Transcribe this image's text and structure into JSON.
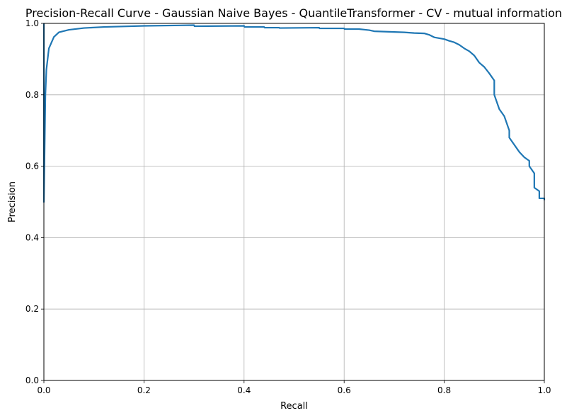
{
  "chart_data": {
    "type": "line",
    "title": "Precision-Recall Curve - Gaussian Naive Bayes - QuantileTransformer - CV - mutual information",
    "xlabel": "Recall",
    "ylabel": "Precision",
    "xlim": [
      0,
      1
    ],
    "ylim": [
      0,
      1
    ],
    "xticks": [
      "0.0",
      "0.2",
      "0.4",
      "0.6",
      "0.8",
      "1.0"
    ],
    "yticks": [
      "0.0",
      "0.2",
      "0.4",
      "0.6",
      "0.8",
      "1.0"
    ],
    "grid": true,
    "line_color": "#1f77b4",
    "series": [
      {
        "x": [
          0,
          0,
          0.001,
          0.003,
          0.005,
          0.01,
          0.02,
          0.03,
          0.05,
          0.08,
          0.12,
          0.2,
          0.3,
          0.301,
          0.4,
          0.401,
          0.44,
          0.441,
          0.47,
          0.471,
          0.55,
          0.551,
          0.6,
          0.601,
          0.63,
          0.65,
          0.66,
          0.7,
          0.72,
          0.74,
          0.76,
          0.77,
          0.78,
          0.8,
          0.81,
          0.82,
          0.83,
          0.84,
          0.85,
          0.86,
          0.87,
          0.88,
          0.89,
          0.9,
          0.9,
          0.91,
          0.92,
          0.93,
          0.93,
          0.94,
          0.95,
          0.96,
          0.97,
          0.97,
          0.98,
          0.98,
          0.99,
          0.99,
          1.0,
          1.0
        ],
        "y": [
          1.0,
          0.5,
          0.6,
          0.8,
          0.87,
          0.93,
          0.962,
          0.975,
          0.982,
          0.987,
          0.99,
          0.993,
          0.995,
          0.992,
          0.993,
          0.99,
          0.99,
          0.988,
          0.988,
          0.987,
          0.988,
          0.986,
          0.986,
          0.984,
          0.984,
          0.981,
          0.978,
          0.976,
          0.975,
          0.973,
          0.972,
          0.968,
          0.961,
          0.956,
          0.951,
          0.947,
          0.94,
          0.93,
          0.922,
          0.91,
          0.89,
          0.878,
          0.86,
          0.84,
          0.8,
          0.76,
          0.74,
          0.7,
          0.68,
          0.66,
          0.64,
          0.625,
          0.615,
          0.6,
          0.58,
          0.54,
          0.53,
          0.51,
          0.51,
          0.505
        ]
      }
    ]
  }
}
